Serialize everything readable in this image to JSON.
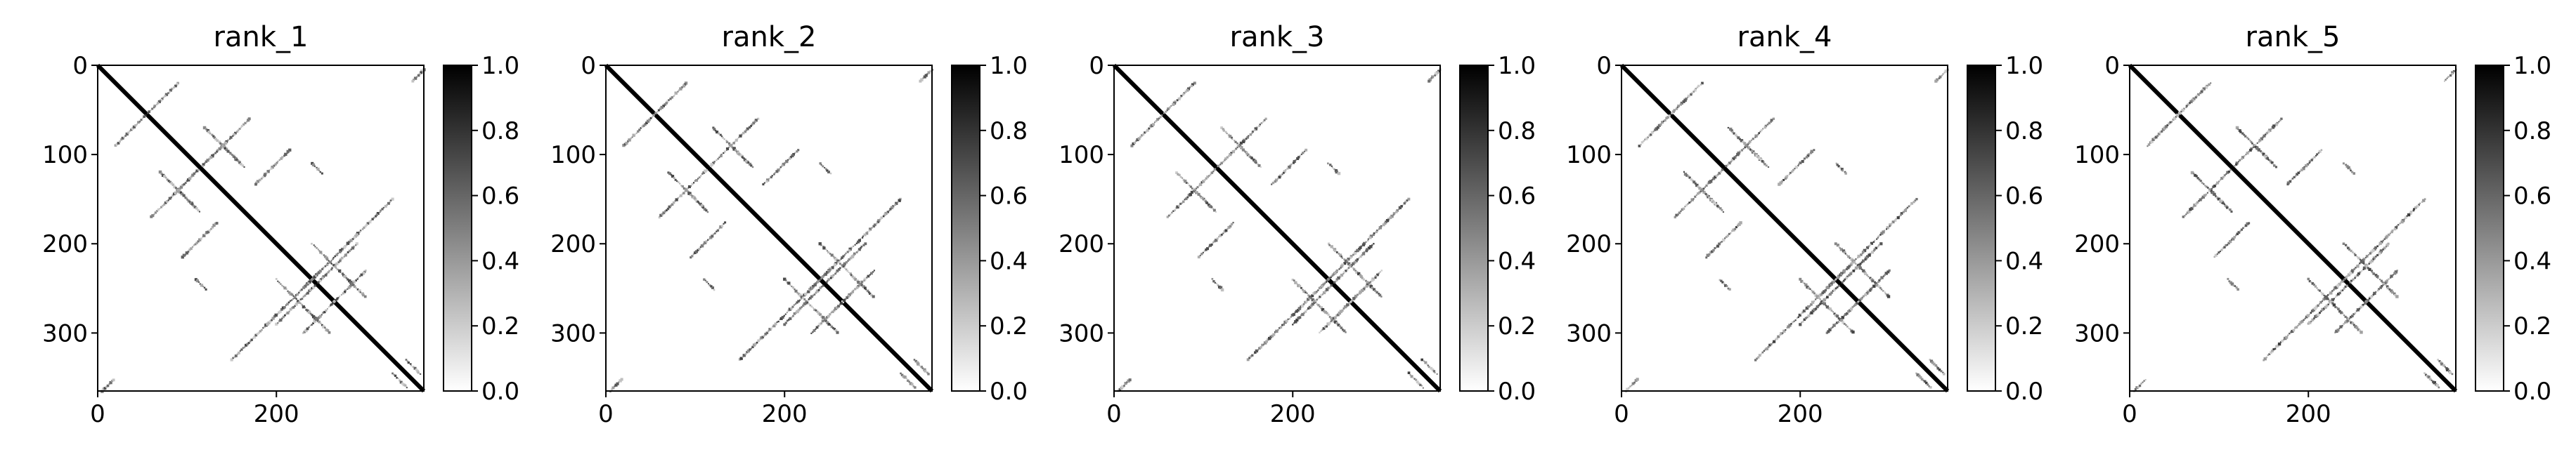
{
  "chart_data": [
    {
      "type": "heatmap",
      "title": "rank_1",
      "colormap": "gray_r",
      "xlim": [
        0,
        365
      ],
      "ylim": [
        365,
        0
      ],
      "x_ticks": [
        "0",
        "200"
      ],
      "y_ticks": [
        "0",
        "100",
        "200",
        "300"
      ],
      "colorbar_ticks": [
        "0.0",
        "0.2",
        "0.4",
        "0.6",
        "0.8",
        "1.0"
      ],
      "colorbar_range": [
        0.0,
        1.0
      ]
    },
    {
      "type": "heatmap",
      "title": "rank_2",
      "colormap": "gray_r",
      "xlim": [
        0,
        365
      ],
      "ylim": [
        365,
        0
      ],
      "x_ticks": [
        "0",
        "200"
      ],
      "y_ticks": [
        "0",
        "100",
        "200",
        "300"
      ],
      "colorbar_ticks": [
        "0.0",
        "0.2",
        "0.4",
        "0.6",
        "0.8",
        "1.0"
      ],
      "colorbar_range": [
        0.0,
        1.0
      ]
    },
    {
      "type": "heatmap",
      "title": "rank_3",
      "colormap": "gray_r",
      "xlim": [
        0,
        365
      ],
      "ylim": [
        365,
        0
      ],
      "x_ticks": [
        "0",
        "200"
      ],
      "y_ticks": [
        "0",
        "100",
        "200",
        "300"
      ],
      "colorbar_ticks": [
        "0.0",
        "0.2",
        "0.4",
        "0.6",
        "0.8",
        "1.0"
      ],
      "colorbar_range": [
        0.0,
        1.0
      ]
    },
    {
      "type": "heatmap",
      "title": "rank_4",
      "colormap": "gray_r",
      "xlim": [
        0,
        365
      ],
      "ylim": [
        365,
        0
      ],
      "x_ticks": [
        "0",
        "200"
      ],
      "y_ticks": [
        "0",
        "100",
        "200",
        "300"
      ],
      "colorbar_ticks": [
        "0.0",
        "0.2",
        "0.4",
        "0.6",
        "0.8",
        "1.0"
      ],
      "colorbar_range": [
        0.0,
        1.0
      ]
    },
    {
      "type": "heatmap",
      "title": "rank_5",
      "colormap": "gray_r",
      "xlim": [
        0,
        365
      ],
      "ylim": [
        365,
        0
      ],
      "x_ticks": [
        "0",
        "200"
      ],
      "y_ticks": [
        "0",
        "100",
        "200",
        "300"
      ],
      "colorbar_ticks": [
        "0.0",
        "0.2",
        "0.4",
        "0.6",
        "0.8",
        "1.0"
      ],
      "colorbar_range": [
        0.0,
        1.0
      ]
    }
  ]
}
